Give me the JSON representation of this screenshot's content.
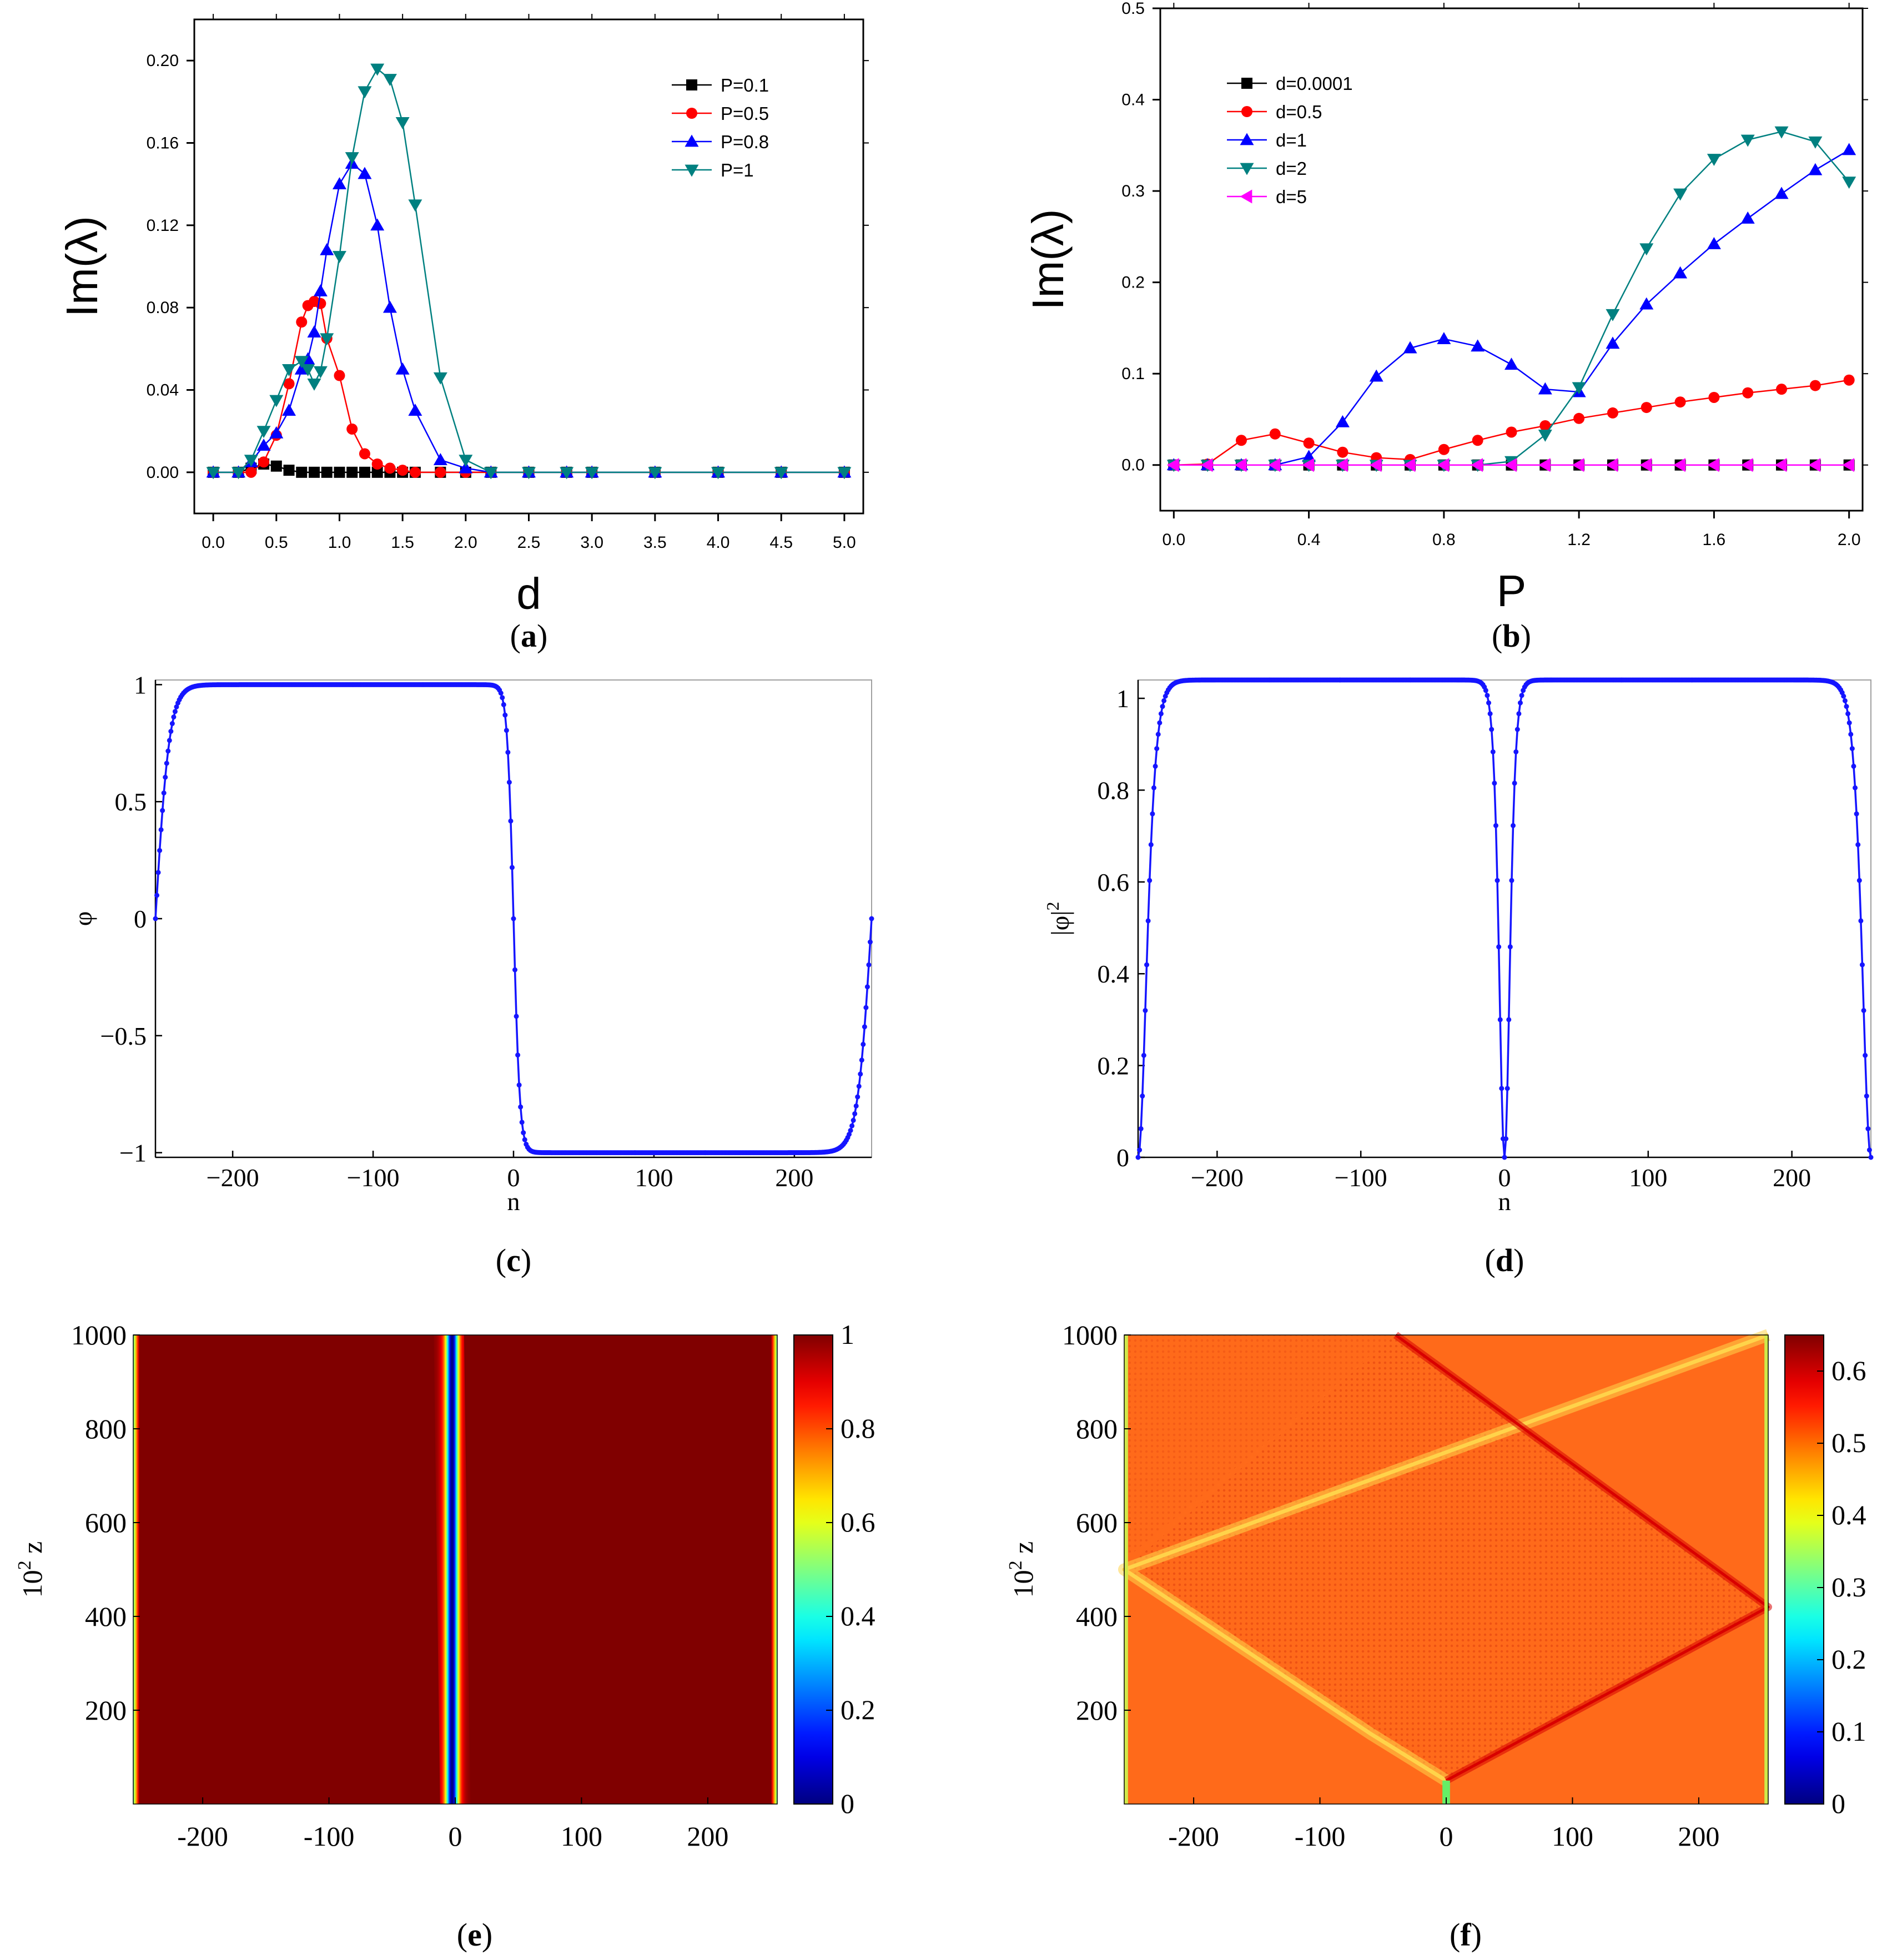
{
  "figure": {
    "panels": [
      "a",
      "b",
      "c",
      "d",
      "e",
      "f"
    ]
  },
  "chart_data": [
    {
      "id": "a",
      "caption_letter": "a",
      "caption": "(a)",
      "type": "line",
      "xlabel": "d",
      "ylabel": "Im(λ)",
      "xlim": [
        -0.15,
        5.15
      ],
      "ylim": [
        -0.02,
        0.22
      ],
      "xticks": [
        0.0,
        0.5,
        1.0,
        1.5,
        2.0,
        2.5,
        3.0,
        3.5,
        4.0,
        4.5,
        5.0
      ],
      "xtick_labels": [
        "0.0",
        "0.5",
        "1.0",
        "1.5",
        "2.0",
        "2.5",
        "3.0",
        "3.5",
        "4.0",
        "4.5",
        "5.0"
      ],
      "yticks": [
        0.0,
        0.04,
        0.08,
        0.12,
        0.16,
        0.2
      ],
      "ytick_labels": [
        "0.00",
        "0.04",
        "0.08",
        "0.12",
        "0.16",
        "0.20"
      ],
      "legend_position": "top-right",
      "series": [
        {
          "name": "P=0.1",
          "color": "#000000",
          "marker": "square",
          "x": [
            0,
            0.2,
            0.3,
            0.4,
            0.5,
            0.6,
            0.7,
            0.8,
            0.9,
            1.0,
            1.1,
            1.2,
            1.3,
            1.4,
            1.5,
            1.6,
            1.8,
            2.0,
            2.2,
            2.5,
            2.8,
            3.0,
            3.5,
            4.0,
            4.5,
            5.0
          ],
          "y": [
            0,
            0,
            0.002,
            0.004,
            0.003,
            0.001,
            0,
            0,
            0,
            0,
            0,
            0,
            0,
            0,
            0,
            0,
            0,
            0,
            0,
            0,
            0,
            0,
            0,
            0,
            0,
            0
          ]
        },
        {
          "name": "P=0.5",
          "color": "#ff0000",
          "marker": "circle",
          "x": [
            0,
            0.2,
            0.3,
            0.4,
            0.5,
            0.6,
            0.7,
            0.75,
            0.8,
            0.85,
            0.9,
            1.0,
            1.1,
            1.2,
            1.3,
            1.4,
            1.5,
            1.6,
            1.8,
            2.0,
            2.2,
            2.5,
            2.8,
            3.0,
            3.5,
            4.0,
            4.5,
            5.0
          ],
          "y": [
            0,
            0,
            0,
            0.005,
            0.018,
            0.043,
            0.073,
            0.081,
            0.083,
            0.082,
            0.065,
            0.047,
            0.021,
            0.009,
            0.004,
            0.002,
            0.001,
            0,
            0,
            0,
            0,
            0,
            0,
            0,
            0,
            0,
            0,
            0
          ]
        },
        {
          "name": "P=0.8",
          "color": "#0000ff",
          "marker": "triangle-up",
          "x": [
            0,
            0.2,
            0.3,
            0.4,
            0.5,
            0.6,
            0.7,
            0.75,
            0.8,
            0.85,
            0.9,
            1.0,
            1.1,
            1.2,
            1.3,
            1.4,
            1.5,
            1.6,
            1.8,
            2.0,
            2.2,
            2.5,
            2.8,
            3.0,
            3.5,
            4.0,
            4.5,
            5.0
          ],
          "y": [
            0,
            0,
            0.005,
            0.013,
            0.019,
            0.03,
            0.05,
            0.055,
            0.068,
            0.088,
            0.108,
            0.14,
            0.15,
            0.145,
            0.12,
            0.08,
            0.05,
            0.03,
            0.006,
            0.002,
            0,
            0,
            0,
            0,
            0,
            0,
            0,
            0
          ]
        },
        {
          "name": "P=1",
          "color": "#008080",
          "marker": "triangle-down",
          "x": [
            0,
            0.2,
            0.3,
            0.4,
            0.5,
            0.6,
            0.7,
            0.75,
            0.8,
            0.85,
            0.9,
            1.0,
            1.1,
            1.2,
            1.3,
            1.4,
            1.5,
            1.6,
            1.8,
            2.0,
            2.2,
            2.5,
            2.8,
            3.0,
            3.5,
            4.0,
            4.5,
            5.0
          ],
          "y": [
            0,
            0,
            0.006,
            0.02,
            0.035,
            0.05,
            0.054,
            0.05,
            0.043,
            0.049,
            0.065,
            0.105,
            0.153,
            0.185,
            0.196,
            0.191,
            0.17,
            0.13,
            0.046,
            0.006,
            0,
            0,
            0,
            0,
            0,
            0,
            0,
            0
          ]
        }
      ]
    },
    {
      "id": "b",
      "caption_letter": "b",
      "caption": "(b)",
      "type": "line",
      "xlabel": "P",
      "ylabel": "Im(λ)",
      "xlim": [
        -0.04,
        2.04
      ],
      "ylim": [
        -0.05,
        0.5
      ],
      "xticks": [
        0.0,
        0.4,
        0.8,
        1.2,
        1.6,
        2.0
      ],
      "xtick_labels": [
        "0.0",
        "0.4",
        "0.8",
        "1.2",
        "1.6",
        "2.0"
      ],
      "yticks": [
        0.0,
        0.1,
        0.2,
        0.3,
        0.4,
        0.5
      ],
      "ytick_labels": [
        "0.0",
        "0.1",
        "0.2",
        "0.3",
        "0.4",
        "0.5"
      ],
      "legend_position": "top-left",
      "series": [
        {
          "name": "d=0.0001",
          "color": "#000000",
          "marker": "square",
          "x": [
            0,
            0.1,
            0.2,
            0.3,
            0.4,
            0.5,
            0.6,
            0.7,
            0.8,
            0.9,
            1.0,
            1.1,
            1.2,
            1.3,
            1.4,
            1.5,
            1.6,
            1.7,
            1.8,
            1.9,
            2.0
          ],
          "y": [
            0,
            0,
            0,
            0,
            0,
            0,
            0,
            0,
            0,
            0,
            0,
            0,
            0,
            0,
            0,
            0,
            0,
            0,
            0,
            0,
            0
          ]
        },
        {
          "name": "d=0.5",
          "color": "#ff0000",
          "marker": "circle",
          "x": [
            0,
            0.1,
            0.2,
            0.3,
            0.4,
            0.5,
            0.6,
            0.7,
            0.8,
            0.9,
            1.0,
            1.1,
            1.2,
            1.3,
            1.4,
            1.5,
            1.6,
            1.7,
            1.8,
            1.9,
            2.0
          ],
          "y": [
            0,
            0.001,
            0.027,
            0.034,
            0.024,
            0.014,
            0.008,
            0.006,
            0.017,
            0.027,
            0.036,
            0.043,
            0.051,
            0.057,
            0.063,
            0.069,
            0.074,
            0.079,
            0.083,
            0.087,
            0.093
          ]
        },
        {
          "name": "d=1",
          "color": "#0000ff",
          "marker": "triangle-up",
          "x": [
            0,
            0.1,
            0.2,
            0.3,
            0.4,
            0.5,
            0.6,
            0.7,
            0.8,
            0.9,
            1.0,
            1.1,
            1.2,
            1.3,
            1.4,
            1.5,
            1.6,
            1.7,
            1.8,
            1.9,
            2.0
          ],
          "y": [
            0,
            0,
            0,
            0,
            0.009,
            0.047,
            0.097,
            0.128,
            0.138,
            0.13,
            0.11,
            0.083,
            0.08,
            0.133,
            0.176,
            0.21,
            0.242,
            0.27,
            0.297,
            0.323,
            0.345
          ]
        },
        {
          "name": "d=2",
          "color": "#008080",
          "marker": "triangle-down",
          "x": [
            0,
            0.1,
            0.2,
            0.3,
            0.4,
            0.5,
            0.6,
            0.7,
            0.8,
            0.9,
            1.0,
            1.1,
            1.2,
            1.3,
            1.4,
            1.5,
            1.6,
            1.7,
            1.8,
            1.9,
            2.0
          ],
          "y": [
            0,
            0,
            0,
            0,
            0,
            0,
            0,
            0,
            0,
            0,
            0.004,
            0.033,
            0.085,
            0.165,
            0.237,
            0.297,
            0.335,
            0.356,
            0.365,
            0.354,
            0.31
          ]
        },
        {
          "name": "d=5",
          "color": "#ff00ff",
          "marker": "triangle-left",
          "x": [
            0,
            0.1,
            0.2,
            0.3,
            0.4,
            0.5,
            0.6,
            0.7,
            0.8,
            0.9,
            1.0,
            1.1,
            1.2,
            1.3,
            1.4,
            1.5,
            1.6,
            1.7,
            1.8,
            1.9,
            2.0
          ],
          "y": [
            0,
            0,
            0,
            0,
            0,
            0,
            0,
            0,
            0,
            0,
            0,
            0,
            0,
            0,
            0,
            0,
            0,
            0,
            0,
            0,
            0
          ]
        }
      ]
    },
    {
      "id": "c",
      "caption_letter": "c",
      "caption": "(c)",
      "type": "line",
      "xlabel": "n",
      "ylabel": "φ",
      "xlim": [
        -255,
        255
      ],
      "ylim": [
        -1.02,
        1.02
      ],
      "xticks": [
        -200,
        -100,
        0,
        100,
        200
      ],
      "xtick_labels": [
        "−200",
        "−100",
        "0",
        "100",
        "200"
      ],
      "yticks": [
        -1,
        -0.5,
        0,
        0.5,
        1
      ],
      "ytick_labels": [
        "−1",
        "−0.5",
        "0",
        "0.5",
        "1"
      ],
      "series": [
        {
          "name": "phi",
          "color": "#1515ff",
          "marker": "dot",
          "formula": "phi(n) = tanh((n+255)/10) * -tanh(n/4.5) * tanh((255-n)/10), sampled at every integer n from -255 to 255"
        }
      ]
    },
    {
      "id": "d",
      "caption_letter": "d",
      "caption": "(d)",
      "type": "line",
      "xlabel": "n",
      "ylabel": "|φ|²",
      "ylabel_base": "|φ|",
      "ylabel_exponent": "2",
      "xlim": [
        -255,
        255
      ],
      "ylim": [
        0,
        1.04
      ],
      "xticks": [
        -200,
        -100,
        0,
        100,
        200
      ],
      "xtick_labels": [
        "−200",
        "−100",
        "0",
        "100",
        "200"
      ],
      "yticks": [
        0,
        0.2,
        0.4,
        0.6,
        0.8,
        1
      ],
      "ytick_labels": [
        "0",
        "0.2",
        "0.4",
        "0.6",
        "0.8",
        "1"
      ],
      "series": [
        {
          "name": "|phi|^2",
          "color": "#1515ff",
          "marker": "dot",
          "formula": "|phi(n)|^2 = 1.04 * (tanh((n+255)/8) * tanh(n/5) * tanh((255-n)/8))^2, sampled at every integer n from -255 to 255"
        }
      ]
    },
    {
      "id": "e",
      "caption_letter": "e",
      "caption": "(e)",
      "type": "heatmap",
      "xlabel": "",
      "ylabel": "10² z",
      "ylabel_base": "10",
      "ylabel_exponent": "2",
      "ylabel_var": "z",
      "xlim": [
        -255,
        255
      ],
      "ylim": [
        0,
        1000
      ],
      "xticks": [
        -200,
        -100,
        0,
        100,
        200
      ],
      "xtick_labels": [
        "-200",
        "-100",
        "0",
        "100",
        "200"
      ],
      "yticks": [
        200,
        400,
        600,
        800,
        1000
      ],
      "ytick_labels": [
        "200",
        "400",
        "600",
        "800",
        "1000"
      ],
      "colorbar": {
        "min": 0,
        "max": 1,
        "ticks": [
          0,
          0.2,
          0.4,
          0.6,
          0.8,
          1
        ],
        "tick_labels": [
          "0",
          "0.2",
          "0.4",
          "0.6",
          "0.8",
          "1"
        ]
      },
      "description": "uniform intensity ~1 with narrow dark soliton near n≈0 drifting slowly from n≈0 at z=0 to n≈-5 at z=1000; boundary dips at n=±255",
      "notch_drift": {
        "z": [
          0,
          1000
        ],
        "n": [
          0,
          -5
        ]
      }
    },
    {
      "id": "f",
      "caption_letter": "f",
      "caption": "(f)",
      "type": "heatmap",
      "xlabel": "",
      "ylabel": "10² z",
      "ylabel_base": "10",
      "ylabel_exponent": "2",
      "ylabel_var": "z",
      "xlim": [
        -255,
        255
      ],
      "ylim": [
        0,
        1000
      ],
      "xticks": [
        -200,
        -100,
        0,
        100,
        200
      ],
      "xtick_labels": [
        "-200",
        "-100",
        "0",
        "100",
        "200"
      ],
      "yticks": [
        200,
        400,
        600,
        800,
        1000
      ],
      "ytick_labels": [
        "200",
        "400",
        "600",
        "800",
        "1000"
      ],
      "colorbar": {
        "min": 0,
        "max": 0.65,
        "ticks": [
          0,
          0.1,
          0.2,
          0.3,
          0.4,
          0.5,
          0.6
        ],
        "tick_labels": [
          "0",
          "0.1",
          "0.2",
          "0.3",
          "0.4",
          "0.5",
          "0.6"
        ]
      },
      "description": "background intensity ~0.5 with a yellow beam travelling from (0,50) to (-255,500) then reflecting toward (255,1000); a red wave front travelling from (0,50) to (255,420) then reflecting toward (-40,1000); interference texture near center",
      "beams": [
        {
          "name": "left beam",
          "points": [
            [
              0,
              50
            ],
            [
              -60,
              150
            ],
            [
              -255,
              500
            ],
            [
              255,
              1000
            ]
          ],
          "color": "#ffd34a"
        },
        {
          "name": "right beam",
          "points": [
            [
              0,
              50
            ],
            [
              255,
              420
            ],
            [
              -40,
              1000
            ]
          ],
          "color": "#d80000"
        }
      ]
    }
  ]
}
